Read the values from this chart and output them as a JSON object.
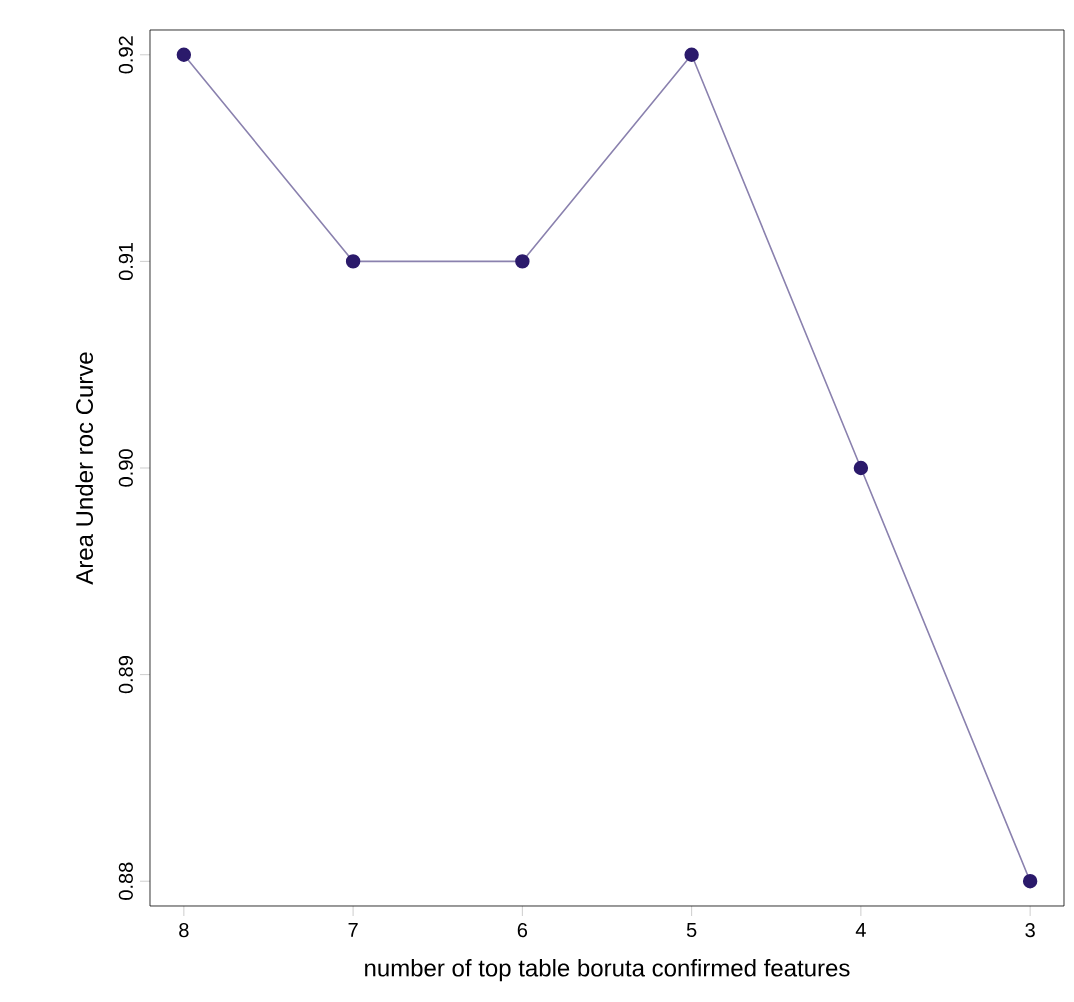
{
  "chart_data": {
    "type": "line",
    "xlabel": "number of top table boruta confirmed features",
    "ylabel": "Area Under roc Curve",
    "x": [
      8,
      7,
      6,
      5,
      4,
      3
    ],
    "series": [
      {
        "color": "#2b1a6b",
        "values": [
          0.92,
          0.91,
          0.91,
          0.92,
          0.9,
          0.88
        ]
      }
    ],
    "xlim": [
      8.2,
      2.8
    ],
    "ylim": [
      0.8788,
      0.9212
    ],
    "xticks": [
      {
        "value": 8,
        "label": "8"
      },
      {
        "value": 7,
        "label": "7"
      },
      {
        "value": 6,
        "label": "6"
      },
      {
        "value": 5,
        "label": "5"
      },
      {
        "value": 4,
        "label": "4"
      },
      {
        "value": 3,
        "label": "3"
      }
    ],
    "yticks": [
      {
        "value": 0.88,
        "label": "0.88"
      },
      {
        "value": 0.89,
        "label": "0.89"
      },
      {
        "value": 0.9,
        "label": "0.90"
      },
      {
        "value": 0.91,
        "label": "0.91"
      },
      {
        "value": 0.92,
        "label": "0.92"
      }
    ],
    "grid": false,
    "marker": "circle",
    "line_style": "solid"
  }
}
